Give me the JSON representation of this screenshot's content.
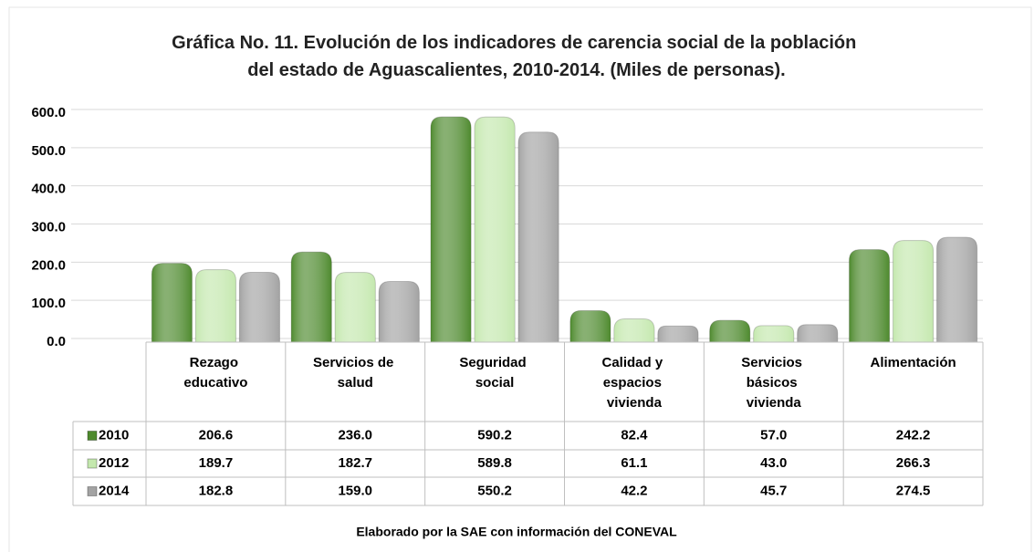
{
  "chart_data": {
    "type": "bar",
    "title": "Gráfica No. 11. Evolución de los indicadores de carencia social de la población del estado de Aguascalientes, 2010-2014. (Miles de personas).",
    "categories": [
      "Rezago educativo",
      "Servicios de salud",
      "Seguridad social",
      "Calidad y espacios vivienda",
      "Servicios básicos vivienda",
      "Alimentación"
    ],
    "series": [
      {
        "name": "2010",
        "color": "#4e8a2e",
        "values": [
          206.6,
          236,
          590.2,
          82.4,
          57,
          242.2
        ],
        "value_labels": [
          "206.6",
          "236.0",
          "590.2",
          "82.4",
          "57.0",
          "242.2"
        ]
      },
      {
        "name": "2012",
        "color": "#c4e8ae",
        "values": [
          189.7,
          182.7,
          589.8,
          61.1,
          43,
          266.3
        ],
        "value_labels": [
          "189.7",
          "182.7",
          "589.8",
          "61.1",
          "43.0",
          "266.3"
        ]
      },
      {
        "name": "2014",
        "color": "#a3a3a3",
        "values": [
          182.8,
          159,
          550.2,
          42.2,
          45.7,
          274.5
        ],
        "value_labels": [
          "182.8",
          "159.0",
          "550.2",
          "42.2",
          "45.7",
          "274.5"
        ]
      }
    ],
    "ylim": [
      0,
      600
    ],
    "yticks": [
      {
        "value": 0,
        "label": "0.0"
      },
      {
        "value": 100,
        "label": "100.0"
      },
      {
        "value": 200,
        "label": "200.0"
      },
      {
        "value": 300,
        "label": "300.0"
      },
      {
        "value": 400,
        "label": "400.0"
      },
      {
        "value": 500,
        "label": "500.0"
      },
      {
        "value": 600,
        "label": "600.0"
      }
    ],
    "grid": true,
    "note": "Elaborado por la SAE con información del CONEVAL"
  }
}
